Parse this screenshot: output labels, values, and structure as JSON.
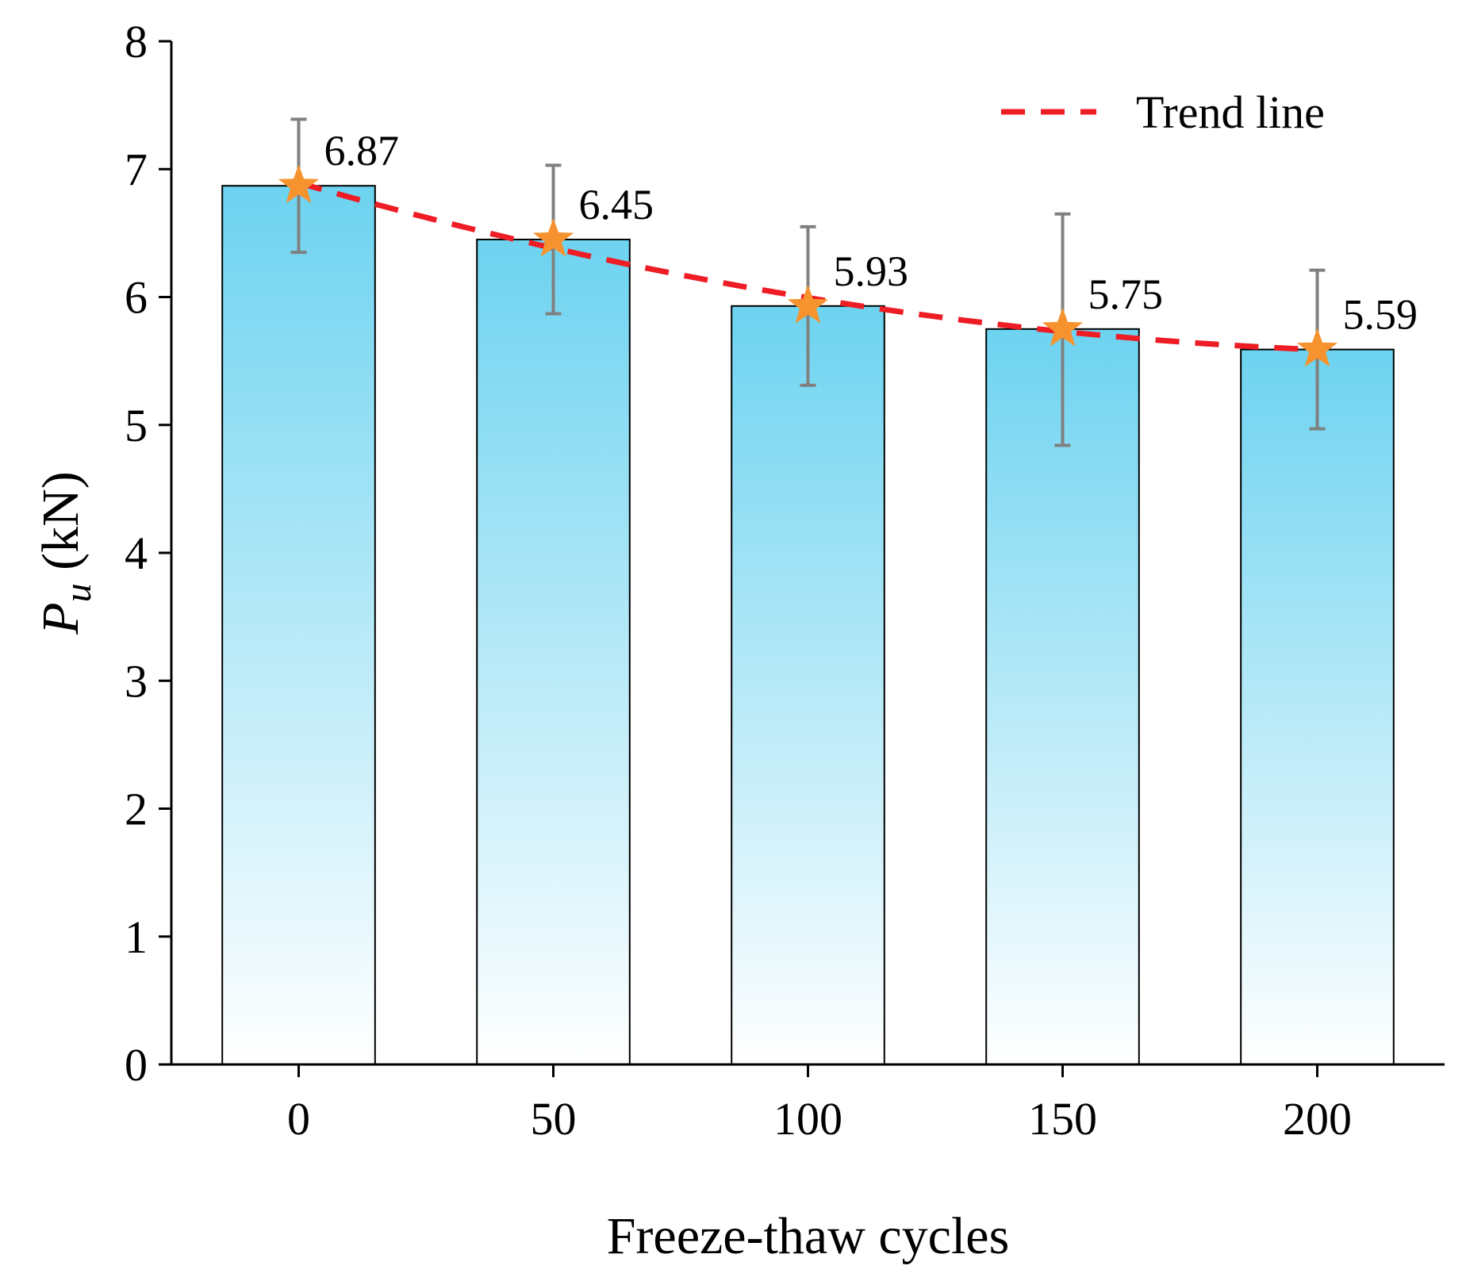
{
  "chart_data": {
    "type": "bar",
    "categories": [
      "0",
      "50",
      "100",
      "150",
      "200"
    ],
    "x": [
      0,
      50,
      100,
      150,
      200
    ],
    "values": [
      6.87,
      6.45,
      5.93,
      5.75,
      5.59
    ],
    "value_labels": [
      "6.87",
      "6.45",
      "5.93",
      "5.75",
      "5.59"
    ],
    "error_high": [
      7.39,
      7.03,
      6.55,
      6.65,
      6.21
    ],
    "error_low": [
      6.35,
      5.87,
      5.31,
      4.84,
      4.97
    ],
    "xlabel": "Freeze-thaw cycles",
    "ylabel_symbol": "P",
    "ylabel_subscript": "u",
    "ylabel_unit": " (kN)",
    "ylim": [
      0,
      8
    ],
    "yticks": [
      0,
      1,
      2,
      3,
      4,
      5,
      6,
      7,
      8
    ],
    "ytick_labels": [
      "0",
      "1",
      "2",
      "3",
      "4",
      "5",
      "6",
      "7",
      "8"
    ],
    "xlim": [
      -25,
      225
    ],
    "grid": false,
    "legend": {
      "placement": "top-right",
      "entries": [
        {
          "label": "Trend line",
          "style": "dashed-line",
          "color": "#ee1c25"
        }
      ]
    },
    "colors": {
      "bar_top": "#6dd3f0",
      "bar_bottom": "#ffffff",
      "bar_edge": "#000000",
      "error_bar": "#808080",
      "marker": "#f7932f",
      "trend": "#ee1c25"
    },
    "marker": "star"
  }
}
